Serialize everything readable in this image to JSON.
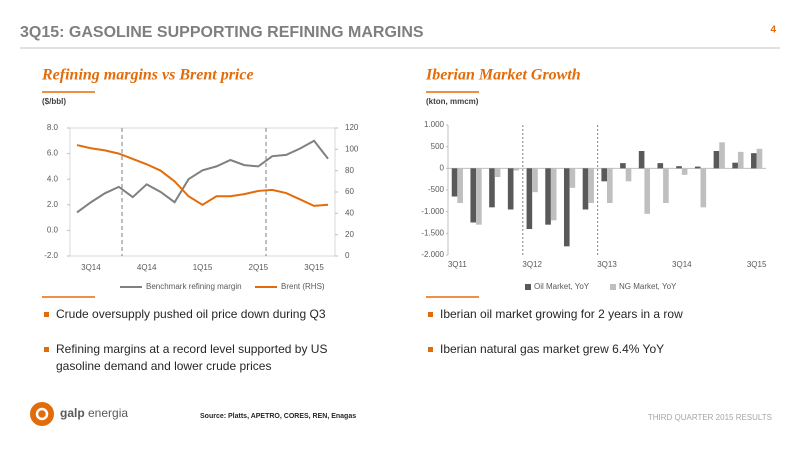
{
  "header": {
    "title": "3Q15: GASOLINE SUPPORTING REFINING MARGINS",
    "page": "4"
  },
  "chart_data": [
    {
      "type": "line",
      "title": "Refining margins vs Brent price",
      "unit": "($/bbl)",
      "categories": [
        null,
        "3Q14",
        null,
        null,
        null,
        "4Q14",
        null,
        null,
        null,
        "1Q15",
        null,
        null,
        null,
        "2Q15",
        null,
        null,
        null,
        "3Q15",
        null
      ],
      "series": [
        {
          "name": "Benchmark refining margin",
          "color": "#808080",
          "values": [
            1.4,
            2.2,
            2.9,
            3.4,
            2.6,
            3.6,
            3.0,
            2.2,
            4.0,
            4.7,
            5.0,
            5.5,
            5.1,
            5.0,
            5.8,
            5.9,
            6.4,
            7.0,
            5.6
          ]
        },
        {
          "name": "Brent (RHS)",
          "color": "#e36c0a",
          "axis": "y2",
          "values": [
            104,
            101,
            99,
            96,
            91,
            86,
            80,
            70,
            56,
            48,
            56,
            56,
            58,
            61,
            62,
            59,
            53,
            47,
            48
          ]
        }
      ],
      "ylim": [
        -2,
        8
      ],
      "yticks": [
        {
          "value": -2,
          "label": "-2.0"
        },
        {
          "value": 0,
          "label": "0.0"
        },
        {
          "value": 2,
          "label": "2.0"
        },
        {
          "value": 4,
          "label": "4.0"
        },
        {
          "value": 6,
          "label": "6.0"
        },
        {
          "value": 8,
          "label": "8.0"
        }
      ],
      "y2lim": [
        0,
        120
      ],
      "y2ticks": [
        0,
        20,
        40,
        60,
        80,
        100,
        120
      ]
    },
    {
      "type": "bar",
      "title": "Iberian Market Growth",
      "unit": "(kton, mmcm)",
      "categories": [
        "3Q11",
        null,
        null,
        null,
        "3Q12",
        null,
        null,
        null,
        "3Q13",
        null,
        null,
        null,
        "3Q14",
        null,
        null,
        null,
        "3Q15"
      ],
      "series": [
        {
          "name": "Oil Market, YoY",
          "color": "#595959",
          "values": [
            -650,
            -1250,
            -900,
            -950,
            -1400,
            -1300,
            -1800,
            -950,
            -300,
            120,
            400,
            120,
            50,
            40,
            400,
            130,
            350
          ]
        },
        {
          "name": "NG Market, YoY",
          "color": "#bfbfbf",
          "values": [
            -800,
            -1300,
            -200,
            -50,
            -550,
            -1200,
            -450,
            -800,
            -800,
            -300,
            -1050,
            -800,
            -150,
            -900,
            600,
            380,
            450
          ]
        }
      ],
      "ylim": [
        -2000,
        1000
      ],
      "yticks": [
        {
          "value": -2000,
          "label": "-2.000"
        },
        {
          "value": -1500,
          "label": "-1.500"
        },
        {
          "value": -1000,
          "label": "-1.000"
        },
        {
          "value": -500,
          "label": "-500"
        },
        0,
        500,
        {
          "value": 1000,
          "label": "1.000"
        }
      ]
    }
  ],
  "bullets": [
    [
      "Crude oversupply pushed oil price down during Q3",
      "Refining margins at a record level supported by US",
      "gasoline demand and lower crude prices"
    ],
    [
      "Iberian oil market growing for 2 years in a row",
      "Iberian natural gas market grew 6.4% YoY"
    ]
  ],
  "footer": {
    "source": "Source: Platts, APETRO, CORES, REN, Enagas",
    "brand": "galp",
    "brand2": "energia",
    "results": "THIRD QUARTER 2015 RESULTS"
  }
}
